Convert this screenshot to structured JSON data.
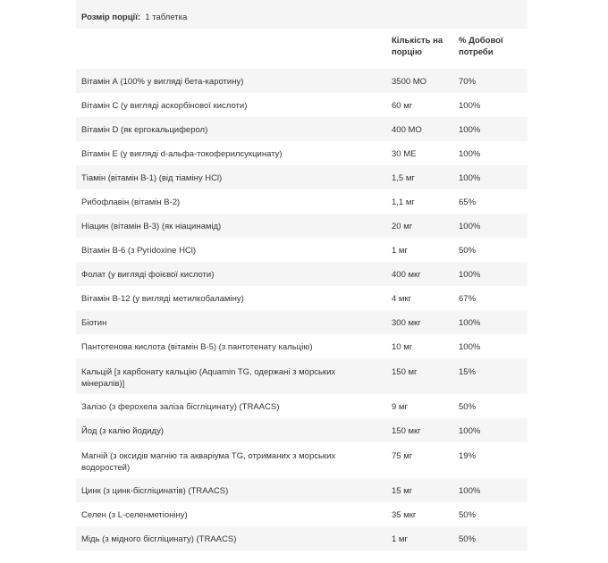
{
  "serving": {
    "label": "Розмір порції:",
    "value": "1 таблетка"
  },
  "headers": {
    "amount": "Кількість на порцію",
    "dv": "% Добової потреби"
  },
  "rows": [
    {
      "name": "Вітамін А (100% у вигляді бета-каротину)",
      "amount": "3500 МО",
      "dv": "70%"
    },
    {
      "name": "Вітамін C (у вигляді аскорбінової кислоти)",
      "amount": "60 мг",
      "dv": "100%"
    },
    {
      "name": "Вітамін D (як ергокальциферол)",
      "amount": "400 МО",
      "dv": "100%"
    },
    {
      "name": "Вітамін E (у вигляді d-альфа-токоферилсукцинату)",
      "amount": "30 МЕ",
      "dv": "100%"
    },
    {
      "name": "Тіамін (вітамін B-1) (від тіаміну HCl)",
      "amount": "1,5 мг",
      "dv": "100%"
    },
    {
      "name": "Рибофлавін (вітамін B-2)",
      "amount": "1,1 мг",
      "dv": "65%"
    },
    {
      "name": "Ніацин (вітамін B-3) (як ніацинамід)",
      "amount": "20 мг",
      "dv": "100%"
    },
    {
      "name": "Вітамін B-6 (з Pyridoxine HCl)",
      "amount": "1 мг",
      "dv": "50%"
    },
    {
      "name": "Фолат (у вигляді фоієвої кислоти)",
      "amount": "400 мкг",
      "dv": "100%"
    },
    {
      "name": "Вітамін B-12 (у вигляді метилкобаламіну)",
      "amount": "4 мкг",
      "dv": "67%"
    },
    {
      "name": "Біотин",
      "amount": "300 мкг",
      "dv": "100%"
    },
    {
      "name": "Пантотенова кислота (вітамін B-5) (з пантотенату кальцію)",
      "amount": "10 мг",
      "dv": "100%"
    },
    {
      "name": "Кальцій [з карбонату кальцію (Aquamin TG, одержані з морських мінералів)]",
      "amount": "150 мг",
      "dv": "15%"
    },
    {
      "name": "Залізо (з ферохела заліза бісгліцинату) (TRAACS)",
      "amount": "9 мг",
      "dv": "50%"
    },
    {
      "name": "Йод (з калію йодиду)",
      "amount": "150 мкг",
      "dv": "100%"
    },
    {
      "name": "Магній (з оксидів магнію та акваріума TG, отриманих з морських водоростей)",
      "amount": "75 мг",
      "dv": "19%"
    },
    {
      "name": "Цинк (з цинк-бісгліцинатів) (TRAACS)",
      "amount": "15 мг",
      "dv": "100%"
    },
    {
      "name": "Селен (з L-селенметіоніну)",
      "amount": "35 мкг",
      "dv": "50%"
    },
    {
      "name": "Мідь (з мідного бісгліцинату) (TRAACS)",
      "amount": "1 мг",
      "dv": "50%"
    }
  ]
}
